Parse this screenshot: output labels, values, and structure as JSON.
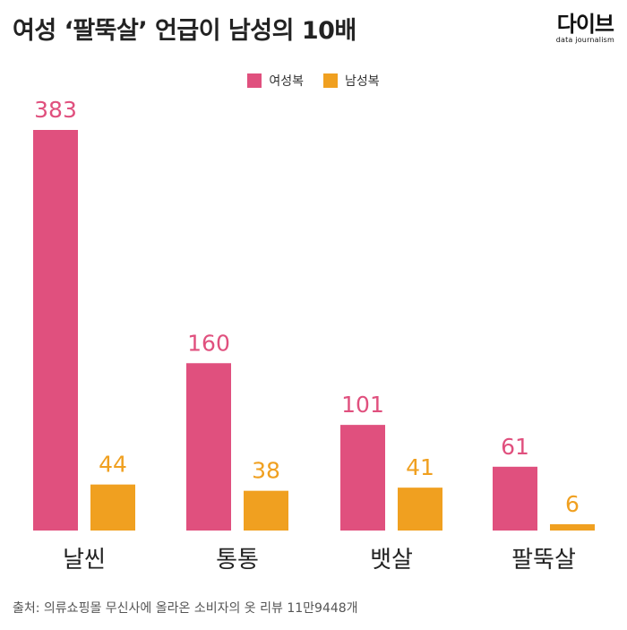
{
  "header": {
    "title": "여성 ‘팔뚝살’ 언급이 남성의 10배",
    "logo_main": "다이브",
    "logo_sub": "data journalism"
  },
  "colors": {
    "female": "#E0507E",
    "male": "#F0A020",
    "category_text": "#222222"
  },
  "chart_data": {
    "type": "bar",
    "title": "여성 ‘팔뚝살’ 언급이 남성의 10배",
    "categories": [
      "날씬",
      "통통",
      "뱃살",
      "팔뚝살"
    ],
    "series": [
      {
        "name": "여성복",
        "values": [
          383,
          160,
          101,
          61
        ]
      },
      {
        "name": "남성복",
        "values": [
          44,
          38,
          41,
          6
        ]
      }
    ],
    "xlabel": "",
    "ylabel": "",
    "ylim": [
      0,
      383
    ],
    "legend": "top-center",
    "grid": false
  },
  "source": "출처: 의류쇼핑몰 무신사에 올라온 소비자의 옷 리뷰 11만9448개"
}
